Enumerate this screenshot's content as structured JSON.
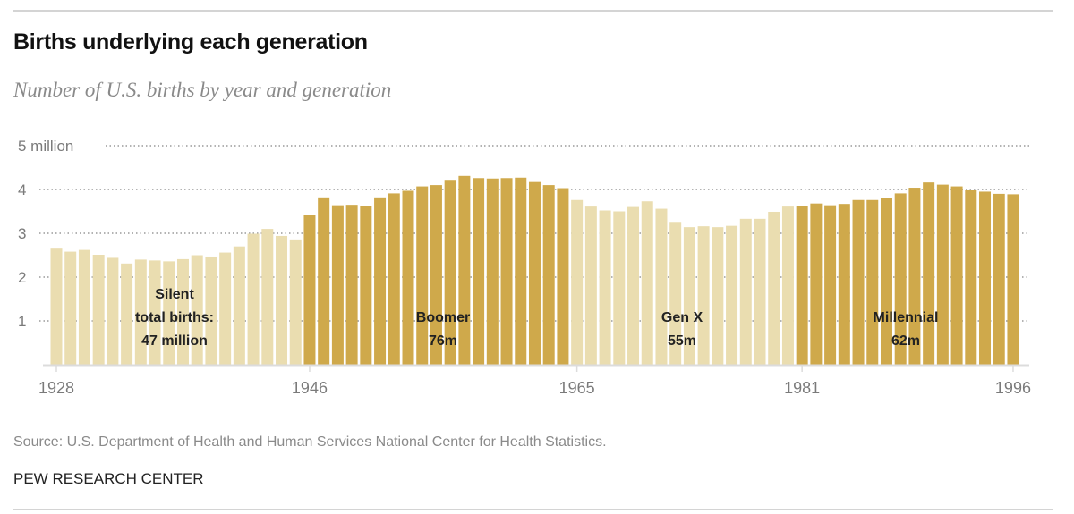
{
  "header": {
    "title": "Births underlying each generation",
    "subtitle": "Number of U.S. births by year and generation"
  },
  "footer": {
    "source": "Source: U.S. Department of Health and Human Services National Center for Health Statistics.",
    "credit": "PEW RESEARCH CENTER"
  },
  "colors": {
    "light": "#EADDB0",
    "dark": "#CFA94B",
    "grid": "#9a9a9a",
    "axis": "#dcdcdc"
  },
  "chart_data": {
    "type": "bar",
    "title": "Births underlying each generation",
    "subtitle": "Number of U.S. births by year and generation",
    "xlabel": "",
    "ylabel": "",
    "ylim": [
      0,
      5
    ],
    "yunit": "million",
    "grid": true,
    "y_ticks": [
      {
        "value": 1,
        "label": "1"
      },
      {
        "value": 2,
        "label": "2"
      },
      {
        "value": 3,
        "label": "3"
      },
      {
        "value": 4,
        "label": "4"
      },
      {
        "value": 5,
        "label": "5 million"
      }
    ],
    "x_ticks": [
      "1928",
      "1946",
      "1965",
      "1981",
      "1996"
    ],
    "x": [
      1928,
      1929,
      1930,
      1931,
      1932,
      1933,
      1934,
      1935,
      1936,
      1937,
      1938,
      1939,
      1940,
      1941,
      1942,
      1943,
      1944,
      1945,
      1946,
      1947,
      1948,
      1949,
      1950,
      1951,
      1952,
      1953,
      1954,
      1955,
      1956,
      1957,
      1958,
      1959,
      1960,
      1961,
      1962,
      1963,
      1964,
      1965,
      1966,
      1967,
      1968,
      1969,
      1970,
      1971,
      1972,
      1973,
      1974,
      1975,
      1976,
      1977,
      1978,
      1979,
      1980,
      1981,
      1982,
      1983,
      1984,
      1985,
      1986,
      1987,
      1988,
      1989,
      1990,
      1991,
      1992,
      1993,
      1994,
      1995,
      1996
    ],
    "series": [
      {
        "name": "Births (millions)",
        "values": [
          2.67,
          2.58,
          2.62,
          2.51,
          2.44,
          2.31,
          2.4,
          2.38,
          2.36,
          2.41,
          2.5,
          2.47,
          2.56,
          2.7,
          2.99,
          3.1,
          2.94,
          2.86,
          3.41,
          3.82,
          3.64,
          3.65,
          3.63,
          3.82,
          3.91,
          3.97,
          4.07,
          4.1,
          4.22,
          4.31,
          4.26,
          4.25,
          4.26,
          4.27,
          4.17,
          4.1,
          4.03,
          3.76,
          3.61,
          3.52,
          3.5,
          3.6,
          3.73,
          3.56,
          3.26,
          3.14,
          3.16,
          3.14,
          3.17,
          3.33,
          3.33,
          3.49,
          3.61,
          3.63,
          3.68,
          3.64,
          3.67,
          3.76,
          3.76,
          3.81,
          3.91,
          4.04,
          4.16,
          4.11,
          4.07,
          4.0,
          3.95,
          3.9,
          3.89
        ]
      }
    ],
    "generations": [
      {
        "name": "Silent",
        "start": 1928,
        "end": 1945,
        "shade": "light",
        "label_lines": [
          "Silent",
          "total births:",
          "47 million"
        ]
      },
      {
        "name": "Boomer",
        "start": 1946,
        "end": 1964,
        "shade": "dark",
        "label_lines": [
          "Boomer",
          "76m"
        ]
      },
      {
        "name": "Gen X",
        "start": 1965,
        "end": 1980,
        "shade": "light",
        "label_lines": [
          "Gen X",
          "55m"
        ]
      },
      {
        "name": "Millennial",
        "start": 1981,
        "end": 1996,
        "shade": "dark",
        "label_lines": [
          "Millennial",
          "62m"
        ]
      }
    ]
  }
}
